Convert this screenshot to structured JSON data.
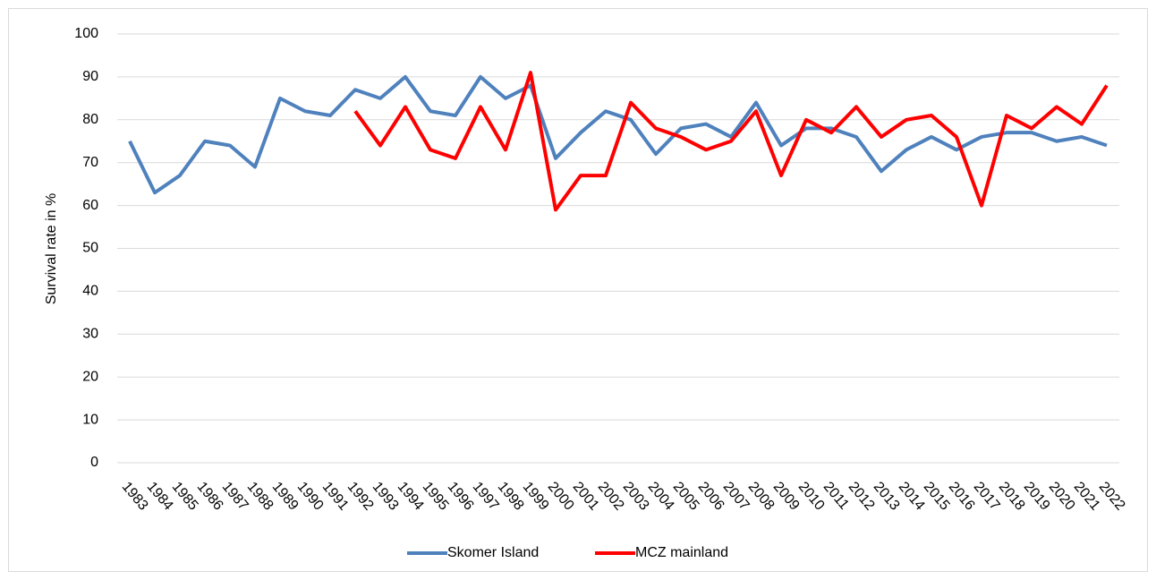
{
  "chart_data": {
    "type": "line",
    "y_label": "Survival rate in %",
    "categories": [
      "1983",
      "1984",
      "1985",
      "1986",
      "1987",
      "1988",
      "1989",
      "1990",
      "1991",
      "1992",
      "1993",
      "1994",
      "1995",
      "1996",
      "1997",
      "1998",
      "1999",
      "2000",
      "2001",
      "2002",
      "2003",
      "2004",
      "2005",
      "2006",
      "2007",
      "2008",
      "2009",
      "2010",
      "2011",
      "2012",
      "2013",
      "2014",
      "2015",
      "2016",
      "2017",
      "2018",
      "2019",
      "2020",
      "2021",
      "2022"
    ],
    "series": [
      {
        "name": "Skomer Island",
        "color": "#4f81bd",
        "values": [
          75,
          63,
          67,
          75,
          74,
          69,
          85,
          82,
          81,
          87,
          85,
          90,
          82,
          81,
          90,
          85,
          88,
          71,
          77,
          82,
          80,
          72,
          78,
          79,
          76,
          84,
          74,
          78,
          78,
          76,
          68,
          73,
          76,
          73,
          76,
          77,
          77,
          75,
          76,
          74
        ]
      },
      {
        "name": "MCZ mainland",
        "color": "#ff0000",
        "values": [
          null,
          null,
          null,
          null,
          null,
          null,
          null,
          null,
          null,
          82,
          74,
          83,
          73,
          71,
          83,
          73,
          91,
          59,
          67,
          67,
          84,
          78,
          76,
          73,
          75,
          82,
          67,
          80,
          77,
          83,
          76,
          80,
          81,
          76,
          60,
          81,
          78,
          83,
          79,
          88
        ]
      }
    ],
    "ylim": [
      0,
      100
    ],
    "yticks": [
      0,
      10,
      20,
      30,
      40,
      50,
      60,
      70,
      80,
      90,
      100
    ],
    "grid": true,
    "legend": "bottom"
  }
}
